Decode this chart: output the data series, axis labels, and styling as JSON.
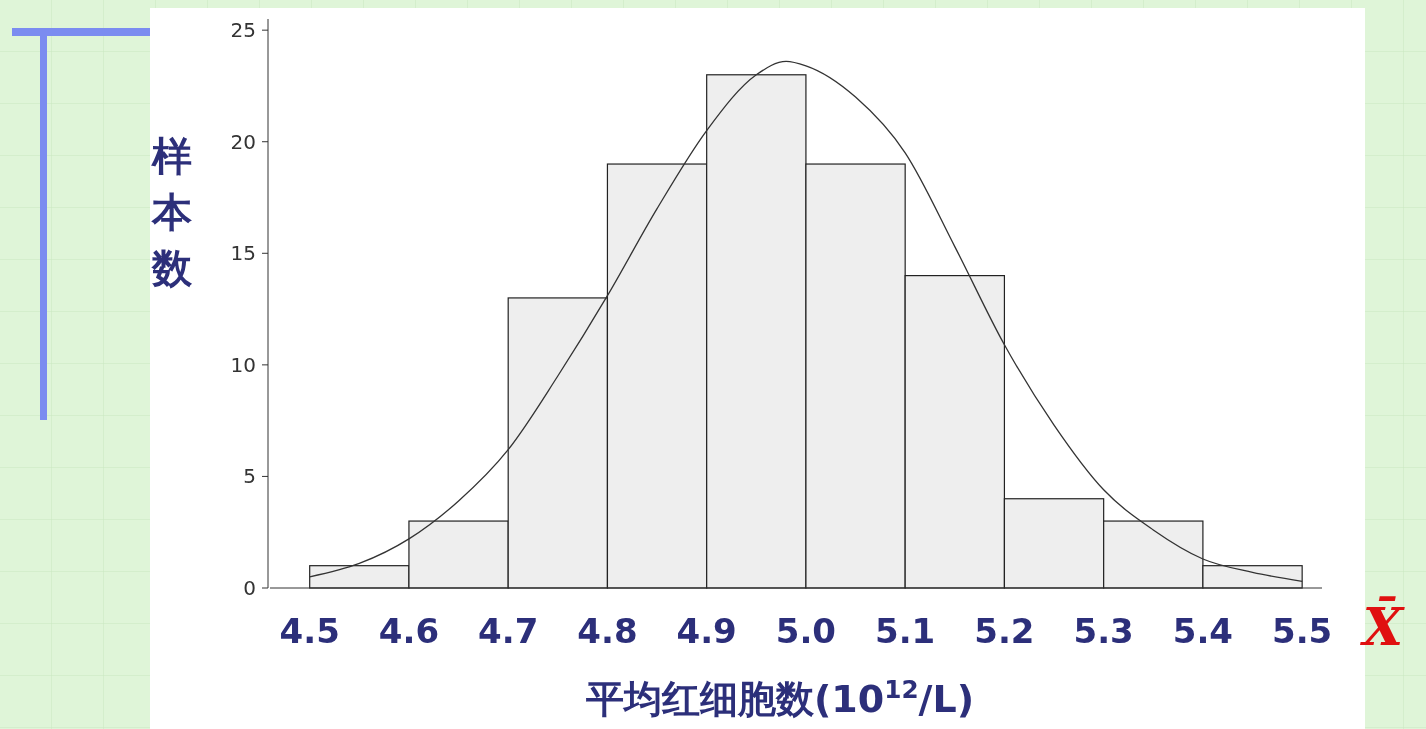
{
  "chart_data": {
    "type": "histogram",
    "xlabel": "平均红细胞数(10$^{12}$/L)",
    "ylabel": "样本数",
    "bins": [
      4.5,
      4.6,
      4.7,
      4.8,
      4.9,
      5.0,
      5.1,
      5.2,
      5.3,
      5.4,
      5.5
    ],
    "series": [
      {
        "color": "#eeeeee",
        "values": [
          1,
          3,
          13,
          19,
          23,
          19,
          14,
          4,
          3,
          1
        ]
      },
      {
        "type": "line",
        "color": "#333333",
        "x": [
          4.5,
          4.55,
          4.6,
          4.65,
          4.7,
          4.75,
          4.8,
          4.85,
          4.9,
          4.95,
          4.98,
          5.0,
          5.05,
          5.1,
          5.15,
          5.2,
          5.25,
          5.3,
          5.35,
          5.4,
          5.45,
          5.5
        ],
        "values": [
          0.5,
          1.1,
          2.2,
          3.9,
          6.2,
          9.5,
          13.1,
          17,
          20.5,
          23,
          23.6,
          23.4,
          22,
          19.5,
          15.3,
          10.9,
          7.3,
          4.4,
          2.6,
          1.3,
          0.7,
          0.3
        ]
      }
    ],
    "xlim": [
      4.46,
      5.52
    ],
    "ylim": [
      0,
      25.5
    ],
    "xticks": [
      4.5,
      4.6,
      4.7,
      4.8,
      4.9,
      {
        "value": 5,
        "label": "5.0"
      },
      5.1,
      5.2,
      5.3,
      5.4,
      5.5
    ],
    "yticks": [
      0,
      5,
      10,
      15,
      20,
      25
    ],
    "annotations": [
      "X̄"
    ]
  }
}
